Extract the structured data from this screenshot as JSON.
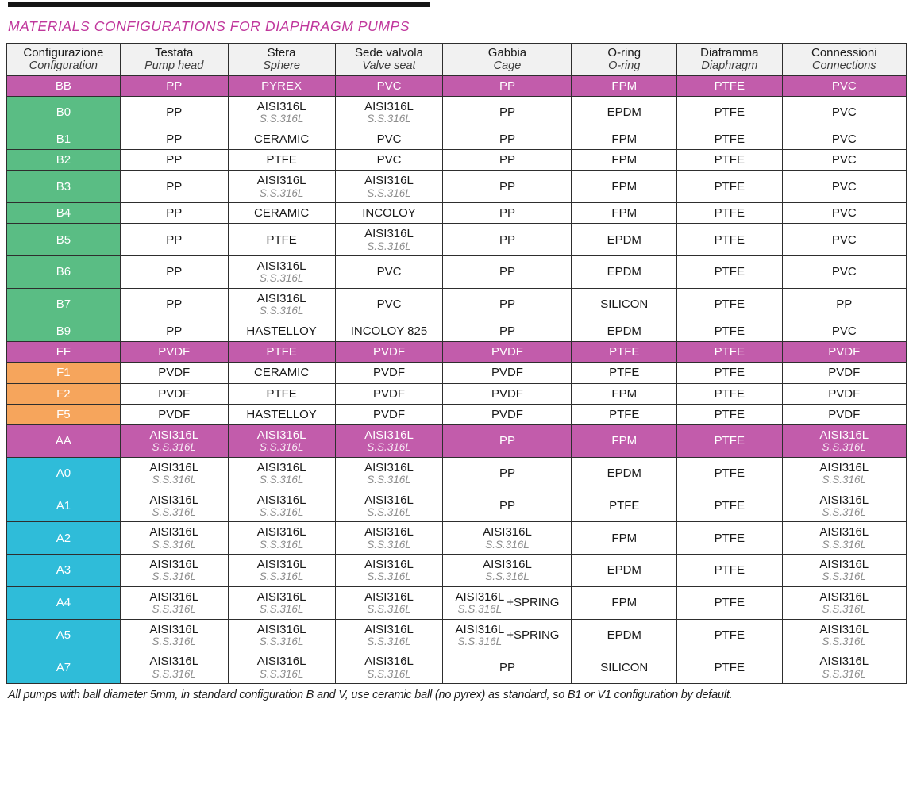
{
  "page": {
    "title": "MATERIALS CONFIGURATIONS FOR DIAPHRAGM PUMPS",
    "footnote": "All pumps with ball diameter 5mm, in standard configuration B and V, use ceramic ball (no pyrex) as standard, so B1 or V1 configuration by default.",
    "colors": {
      "title": "#c0379c",
      "group_row": "#c25cab",
      "config_green": "#5abd84",
      "config_orange": "#f6a55c",
      "config_cyan": "#2fbcd9",
      "header_bg": "#f1f1f1",
      "border": "#2e2e2e",
      "sub_text": "#8d8d8d"
    }
  },
  "table": {
    "columns": [
      {
        "it": "Configurazione",
        "en": "Configuration"
      },
      {
        "it": "Testata",
        "en": "Pump head"
      },
      {
        "it": "Sfera",
        "en": "Sphere"
      },
      {
        "it": "Sede valvola",
        "en": "Valve seat"
      },
      {
        "it": "Gabbia",
        "en": "Cage"
      },
      {
        "it": "O-ring",
        "en": "O-ring"
      },
      {
        "it": "Diaframma",
        "en": "Diaphragm"
      },
      {
        "it": "Connessioni",
        "en": "Connections"
      }
    ],
    "rows": [
      {
        "code": "BB",
        "type": "group",
        "color": "group_row",
        "cells": [
          "PP",
          "PYREX",
          "PVC",
          "PP",
          "FPM",
          "PTFE",
          "PVC"
        ]
      },
      {
        "code": "B0",
        "type": "normal",
        "color": "config_green",
        "cells": [
          "PP",
          {
            "main": "AISI316L",
            "sub": "S.S.316L"
          },
          {
            "main": "AISI316L",
            "sub": "S.S.316L"
          },
          "PP",
          "EPDM",
          "PTFE",
          "PVC"
        ]
      },
      {
        "code": "B1",
        "type": "normal",
        "color": "config_green",
        "cells": [
          "PP",
          "CERAMIC",
          "PVC",
          "PP",
          "FPM",
          "PTFE",
          "PVC"
        ]
      },
      {
        "code": "B2",
        "type": "normal",
        "color": "config_green",
        "cells": [
          "PP",
          "PTFE",
          "PVC",
          "PP",
          "FPM",
          "PTFE",
          "PVC"
        ]
      },
      {
        "code": "B3",
        "type": "normal",
        "color": "config_green",
        "cells": [
          "PP",
          {
            "main": "AISI316L",
            "sub": "S.S.316L"
          },
          {
            "main": "AISI316L",
            "sub": "S.S.316L"
          },
          "PP",
          "FPM",
          "PTFE",
          "PVC"
        ]
      },
      {
        "code": "B4",
        "type": "normal",
        "color": "config_green",
        "cells": [
          "PP",
          "CERAMIC",
          "INCOLOY",
          "PP",
          "FPM",
          "PTFE",
          "PVC"
        ]
      },
      {
        "code": "B5",
        "type": "normal",
        "color": "config_green",
        "cells": [
          "PP",
          "PTFE",
          {
            "main": "AISI316L",
            "sub": "S.S.316L"
          },
          "PP",
          "EPDM",
          "PTFE",
          "PVC"
        ]
      },
      {
        "code": "B6",
        "type": "normal",
        "color": "config_green",
        "cells": [
          "PP",
          {
            "main": "AISI316L",
            "sub": "S.S.316L"
          },
          "PVC",
          "PP",
          "EPDM",
          "PTFE",
          "PVC"
        ]
      },
      {
        "code": "B7",
        "type": "normal",
        "color": "config_green",
        "cells": [
          "PP",
          {
            "main": "AISI316L",
            "sub": "S.S.316L"
          },
          "PVC",
          "PP",
          "SILICON",
          "PTFE",
          "PP"
        ]
      },
      {
        "code": "B9",
        "type": "normal",
        "color": "config_green",
        "cells": [
          "PP",
          "HASTELLOY",
          "INCOLOY 825",
          "PP",
          "EPDM",
          "PTFE",
          "PVC"
        ]
      },
      {
        "code": "FF",
        "type": "group",
        "color": "group_row",
        "cells": [
          "PVDF",
          "PTFE",
          "PVDF",
          "PVDF",
          "PTFE",
          "PTFE",
          "PVDF"
        ]
      },
      {
        "code": "F1",
        "type": "normal",
        "color": "config_orange",
        "cells": [
          "PVDF",
          "CERAMIC",
          "PVDF",
          "PVDF",
          "PTFE",
          "PTFE",
          "PVDF"
        ]
      },
      {
        "code": "F2",
        "type": "normal",
        "color": "config_orange",
        "cells": [
          "PVDF",
          "PTFE",
          "PVDF",
          "PVDF",
          "FPM",
          "PTFE",
          "PVDF"
        ]
      },
      {
        "code": "F5",
        "type": "normal",
        "color": "config_orange",
        "cells": [
          "PVDF",
          "HASTELLOY",
          "PVDF",
          "PVDF",
          "PTFE",
          "PTFE",
          "PVDF"
        ]
      },
      {
        "code": "AA",
        "type": "group",
        "color": "group_row",
        "cells": [
          {
            "main": "AISI316L",
            "sub": "S.S.316L"
          },
          {
            "main": "AISI316L",
            "sub": "S.S.316L"
          },
          {
            "main": "AISI316L",
            "sub": "S.S.316L"
          },
          "PP",
          "FPM",
          "PTFE",
          {
            "main": "AISI316L",
            "sub": "S.S.316L"
          }
        ]
      },
      {
        "code": "A0",
        "type": "normal",
        "color": "config_cyan",
        "cells": [
          {
            "main": "AISI316L",
            "sub": "S.S.316L"
          },
          {
            "main": "AISI316L",
            "sub": "S.S.316L"
          },
          {
            "main": "AISI316L",
            "sub": "S.S.316L"
          },
          "PP",
          "EPDM",
          "PTFE",
          {
            "main": "AISI316L",
            "sub": "S.S.316L"
          }
        ]
      },
      {
        "code": "A1",
        "type": "normal",
        "color": "config_cyan",
        "cells": [
          {
            "main": "AISI316L",
            "sub": "S.S.316L"
          },
          {
            "main": "AISI316L",
            "sub": "S.S.316L"
          },
          {
            "main": "AISI316L",
            "sub": "S.S.316L"
          },
          "PP",
          "PTFE",
          "PTFE",
          {
            "main": "AISI316L",
            "sub": "S.S.316L"
          }
        ]
      },
      {
        "code": "A2",
        "type": "normal",
        "color": "config_cyan",
        "cells": [
          {
            "main": "AISI316L",
            "sub": "S.S.316L"
          },
          {
            "main": "AISI316L",
            "sub": "S.S.316L"
          },
          {
            "main": "AISI316L",
            "sub": "S.S.316L"
          },
          {
            "main": "AISI316L",
            "sub": "S.S.316L"
          },
          "FPM",
          "PTFE",
          {
            "main": "AISI316L",
            "sub": "S.S.316L"
          }
        ]
      },
      {
        "code": "A3",
        "type": "normal",
        "color": "config_cyan",
        "cells": [
          {
            "main": "AISI316L",
            "sub": "S.S.316L"
          },
          {
            "main": "AISI316L",
            "sub": "S.S.316L"
          },
          {
            "main": "AISI316L",
            "sub": "S.S.316L"
          },
          {
            "main": "AISI316L",
            "sub": "S.S.316L"
          },
          "EPDM",
          "PTFE",
          {
            "main": "AISI316L",
            "sub": "S.S.316L"
          }
        ]
      },
      {
        "code": "A4",
        "type": "normal",
        "color": "config_cyan",
        "cells": [
          {
            "main": "AISI316L",
            "sub": "S.S.316L"
          },
          {
            "main": "AISI316L",
            "sub": "S.S.316L"
          },
          {
            "main": "AISI316L",
            "sub": "S.S.316L"
          },
          {
            "main": "AISI316L",
            "sub": "S.S.316L",
            "suffix": "+SPRING"
          },
          "FPM",
          "PTFE",
          {
            "main": "AISI316L",
            "sub": "S.S.316L"
          }
        ]
      },
      {
        "code": "A5",
        "type": "normal",
        "color": "config_cyan",
        "cells": [
          {
            "main": "AISI316L",
            "sub": "S.S.316L"
          },
          {
            "main": "AISI316L",
            "sub": "S.S.316L"
          },
          {
            "main": "AISI316L",
            "sub": "S.S.316L"
          },
          {
            "main": "AISI316L",
            "sub": "S.S.316L",
            "suffix": "+SPRING"
          },
          "EPDM",
          "PTFE",
          {
            "main": "AISI316L",
            "sub": "S.S.316L"
          }
        ]
      },
      {
        "code": "A7",
        "type": "normal",
        "color": "config_cyan",
        "cells": [
          {
            "main": "AISI316L",
            "sub": "S.S.316L"
          },
          {
            "main": "AISI316L",
            "sub": "S.S.316L"
          },
          {
            "main": "AISI316L",
            "sub": "S.S.316L"
          },
          "PP",
          "SILICON",
          "PTFE",
          {
            "main": "AISI316L",
            "sub": "S.S.316L"
          }
        ]
      }
    ]
  }
}
